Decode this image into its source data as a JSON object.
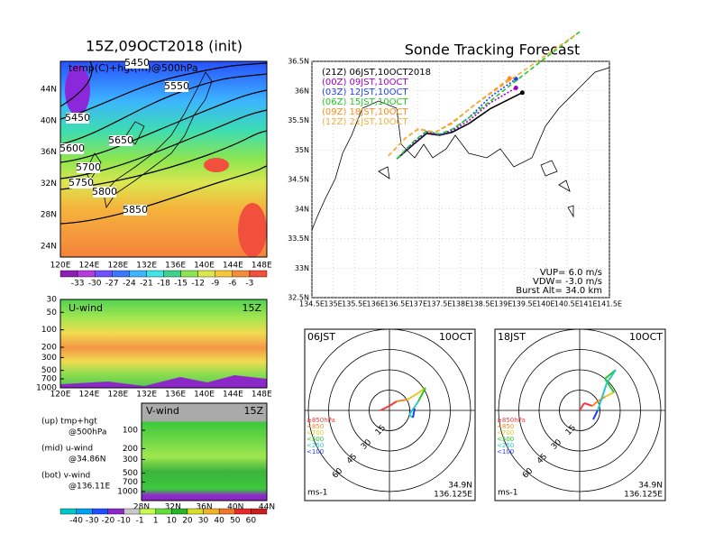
{
  "temp_panel": {
    "title": "15Z,09OCT2018 (init)",
    "label": "temp(C)+hgt(m)@500hPa",
    "xticks": [
      "120E",
      "124E",
      "128E",
      "132E",
      "136E",
      "140E",
      "144E",
      "148E"
    ],
    "yticks": [
      "24N",
      "28N",
      "32N",
      "36N",
      "40N",
      "44N"
    ],
    "contour_labels": [
      "5450",
      "5550",
      "5450",
      "5650",
      "5600",
      "5700",
      "5750",
      "5800",
      "5850"
    ],
    "colorbar": [
      -33,
      -30,
      -27,
      -24,
      -21,
      -18,
      -15,
      -12,
      -9,
      -6,
      -3
    ]
  },
  "uwind_panel": {
    "label": "U-wind",
    "time": "15Z",
    "yticks": [
      30,
      50,
      100,
      200,
      300,
      500,
      700,
      1000
    ],
    "xticks": [
      "120E",
      "124E",
      "128E",
      "132E",
      "136E",
      "140E",
      "144E",
      "148E"
    ]
  },
  "vwind_panel": {
    "label": "V-wind",
    "time": "15Z",
    "yticks": [
      100,
      200,
      300,
      500,
      700,
      1000
    ],
    "xticks": [
      "28N",
      "32N",
      "36N",
      "40N",
      "44N"
    ]
  },
  "notes": [
    "(up) tmp+hgt",
    "@500hPa",
    "(mid) u-wind",
    "@34.86N",
    "(bot) v-wind",
    "@136.11E"
  ],
  "wind_colorbar": [
    -40,
    -30,
    -20,
    -10,
    -1,
    1,
    10,
    20,
    30,
    40,
    50,
    60
  ],
  "chart_data": {
    "type": "line",
    "title": "Sonde Tracking Forecast",
    "xlim": [
      134.5,
      141.5
    ],
    "ylim": [
      32.5,
      36.5
    ],
    "xticks": [
      {
        "value": 134.5,
        "label": "134.5E"
      },
      {
        "value": 135,
        "label": "135E"
      },
      {
        "value": 135.5,
        "label": "135.5E"
      },
      {
        "value": 136,
        "label": "136E"
      },
      {
        "value": 136.5,
        "label": "136.5E"
      },
      {
        "value": 137,
        "label": "137E"
      },
      {
        "value": 137.5,
        "label": "137.5E"
      },
      {
        "value": 138,
        "label": "138E"
      },
      {
        "value": 138.5,
        "label": "138.5E"
      },
      {
        "value": 139,
        "label": "139E"
      },
      {
        "value": 139.5,
        "label": "139.5E"
      },
      {
        "value": 140,
        "label": "140E"
      },
      {
        "value": 140.5,
        "label": "140.5E"
      },
      {
        "value": 141,
        "label": "141E"
      },
      {
        "value": 141.5,
        "label": "141.5E"
      }
    ],
    "yticks": [
      {
        "value": 32.5,
        "label": "32.5N"
      },
      {
        "value": 33,
        "label": "33N"
      },
      {
        "value": 33.5,
        "label": "33.5N"
      },
      {
        "value": 34,
        "label": "34N"
      },
      {
        "value": 34.5,
        "label": "34.5N"
      },
      {
        "value": 35,
        "label": "35N"
      },
      {
        "value": 35.5,
        "label": "35.5N"
      },
      {
        "value": 36,
        "label": "36N"
      },
      {
        "value": 36.5,
        "label": "36.5N"
      }
    ],
    "grid": true,
    "series": [
      {
        "name": "(21Z) 06JST,10OCT2018",
        "color": "#000000",
        "style": "solid",
        "x": [
          136.5,
          136.9,
          137.2,
          137.5,
          137.8,
          138.2,
          138.7,
          139.45
        ],
        "values": [
          34.85,
          35.1,
          35.28,
          35.25,
          35.3,
          35.45,
          35.7,
          35.97
        ]
      },
      {
        "name": "(00Z) 09JST,10OCT",
        "color": "#a000c8",
        "style": "dotted",
        "x": [
          136.5,
          136.9,
          137.2,
          137.5,
          137.8,
          138.2,
          138.7,
          139.3
        ],
        "values": [
          34.85,
          35.12,
          35.3,
          35.25,
          35.32,
          35.5,
          35.8,
          36.05
        ]
      },
      {
        "name": "(03Z) 12JST,10OCT",
        "color": "#1e3cff",
        "style": "dotted",
        "x": [
          136.5,
          136.9,
          137.2,
          137.5,
          137.8,
          138.2,
          138.7,
          139.3
        ],
        "values": [
          34.85,
          35.14,
          35.31,
          35.26,
          35.34,
          35.55,
          35.9,
          36.2
        ]
      },
      {
        "name": "(06Z) 15JST,10OCT",
        "color": "#22c822",
        "style": "dashed",
        "x": [
          136.5,
          136.9,
          137.2,
          137.5,
          137.8,
          138.3,
          139.0,
          139.8,
          140.8
        ],
        "values": [
          34.85,
          35.15,
          35.32,
          35.27,
          35.35,
          35.6,
          36.0,
          36.45,
          37.0
        ]
      },
      {
        "name": "(09Z) 18JST,10OCT",
        "color": "#ff8c1a",
        "style": "dashed",
        "x": [
          136.3,
          136.7,
          137.0,
          137.4,
          137.8,
          138.3,
          139.15
        ],
        "values": [
          34.9,
          35.2,
          35.35,
          35.3,
          35.45,
          35.75,
          36.21
        ]
      },
      {
        "name": "(12Z) 21JST,10OCT",
        "color": "#f0b040",
        "style": "dashed",
        "x": [
          136.3,
          136.7,
          137.0,
          137.4,
          137.8,
          138.4,
          139.2,
          140.0,
          140.7
        ],
        "values": [
          34.9,
          35.2,
          35.36,
          35.3,
          35.47,
          35.8,
          36.2,
          36.6,
          36.95
        ]
      }
    ],
    "annotations": [
      "VUP= 6.0 m/s",
      "VDW= -3.0 m/s",
      "Burst Alt= 34.0 km"
    ]
  },
  "hodographs": [
    {
      "time": "06JST",
      "date": "10OCT",
      "lat": "34.9N",
      "lon": "136.125E",
      "unit": "ms-1",
      "rings": [
        15,
        30,
        45,
        60
      ],
      "legend": [
        "≥850hPa",
        "<850",
        "<700",
        "<500",
        "<250",
        "<100"
      ]
    },
    {
      "time": "18JST",
      "date": "10OCT",
      "lat": "34.9N",
      "lon": "136.125E",
      "unit": "ms-1",
      "rings": [
        15,
        30,
        45,
        60
      ],
      "legend": [
        "≥850hPa",
        "<850",
        "<700",
        "<500",
        "<250",
        "<100"
      ]
    }
  ]
}
